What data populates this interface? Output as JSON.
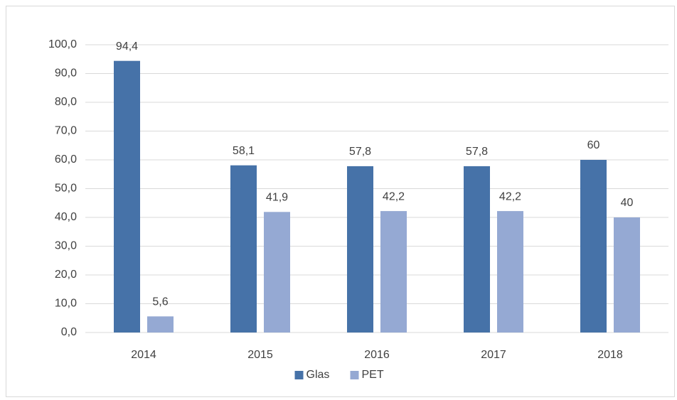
{
  "chart_data": {
    "type": "bar",
    "categories": [
      "2014",
      "2015",
      "2016",
      "2017",
      "2018"
    ],
    "series": [
      {
        "name": "Glas",
        "color": "#4672a8",
        "values": [
          94.4,
          58.1,
          57.8,
          57.8,
          60
        ],
        "value_labels": [
          "94,4",
          "58,1",
          "57,8",
          "57,8",
          "60"
        ]
      },
      {
        "name": "PET",
        "color": "#95a9d3",
        "values": [
          5.6,
          41.9,
          42.2,
          42.2,
          40
        ],
        "value_labels": [
          "5,6",
          "41,9",
          "42,2",
          "42,2",
          "40"
        ]
      }
    ],
    "ylim": [
      0,
      100
    ],
    "yticks": [
      {
        "value": 0,
        "label": "0,0"
      },
      {
        "value": 10,
        "label": "10,0"
      },
      {
        "value": 20,
        "label": "20,0"
      },
      {
        "value": 30,
        "label": "30,0"
      },
      {
        "value": 40,
        "label": "40,0"
      },
      {
        "value": 50,
        "label": "50,0"
      },
      {
        "value": 60,
        "label": "60,0"
      },
      {
        "value": 70,
        "label": "70,0"
      },
      {
        "value": 80,
        "label": "80,0"
      },
      {
        "value": 90,
        "label": "90,0"
      },
      {
        "value": 100,
        "label": "100,0"
      }
    ],
    "grid": true,
    "legend": "bottom"
  }
}
